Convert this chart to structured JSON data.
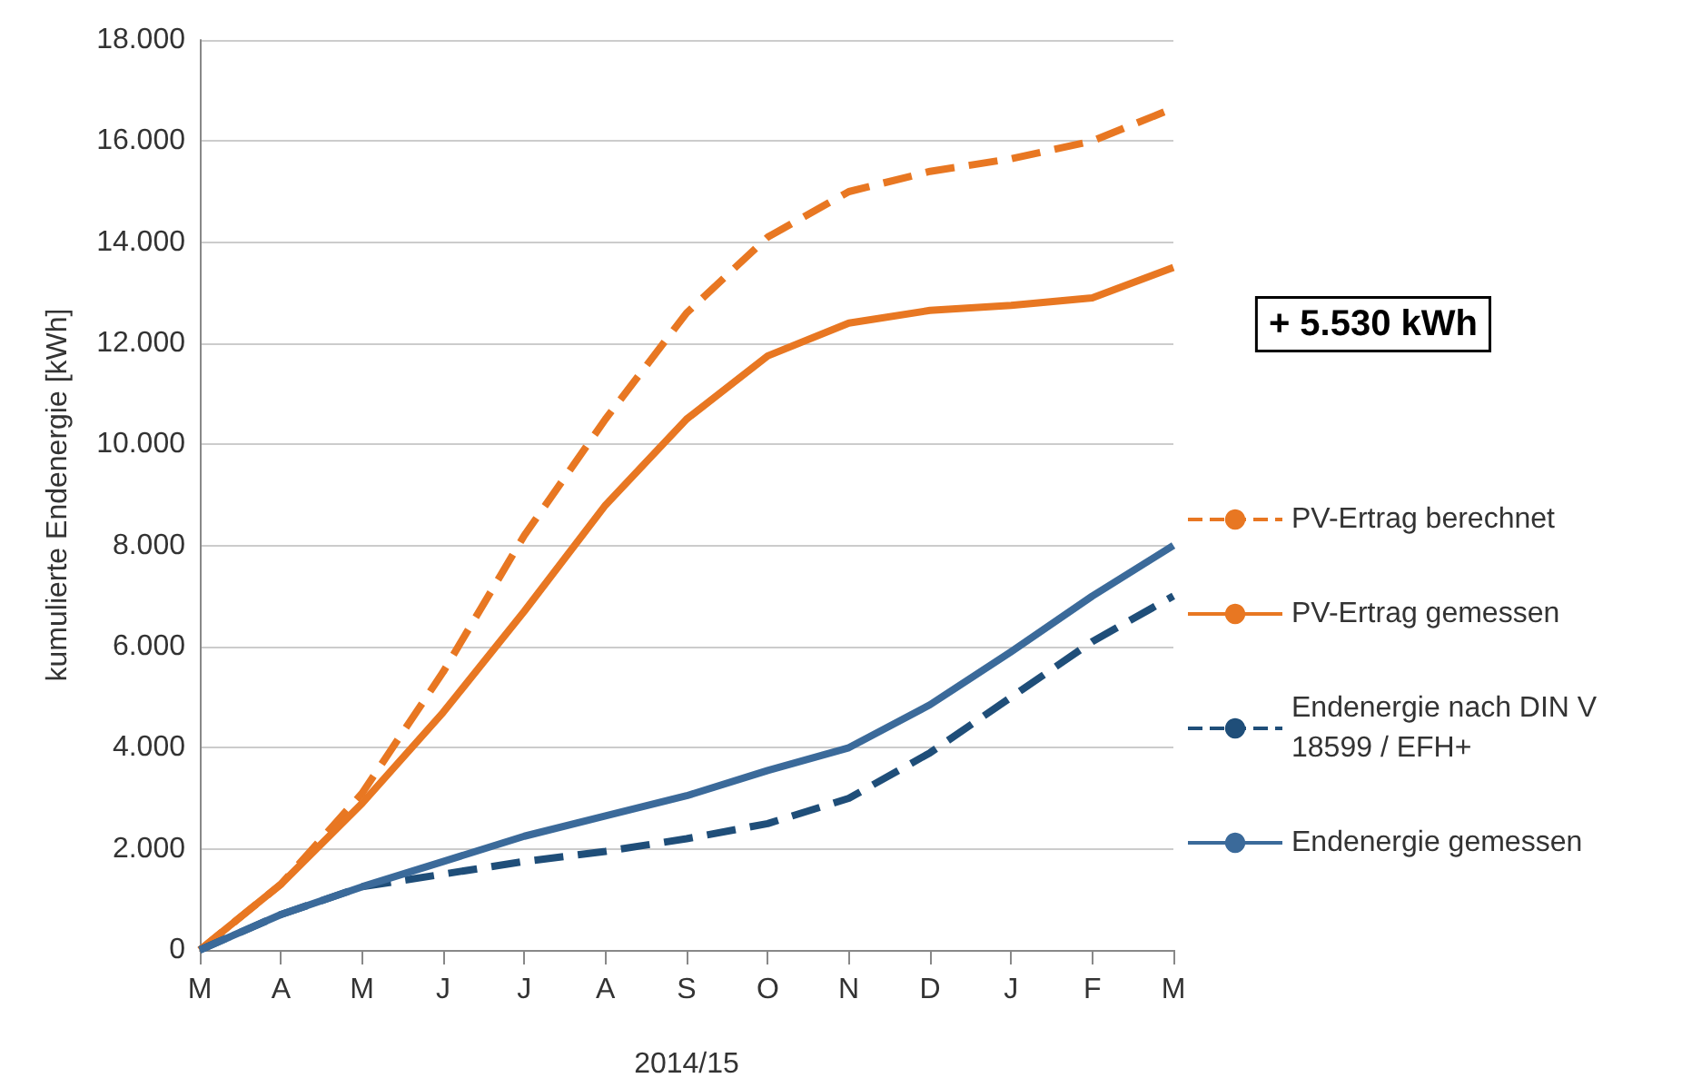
{
  "chart_data": {
    "type": "line",
    "ylabel": "kumulierte Endenergie [kWh]",
    "xlabel": "2014/15",
    "categories": [
      "M",
      "A",
      "M",
      "J",
      "J",
      "A",
      "S",
      "O",
      "N",
      "D",
      "J",
      "F",
      "M"
    ],
    "series": [
      {
        "name": "PV-Ertrag berechnet",
        "color": "#e87722",
        "line_style": "dashed",
        "values": [
          0,
          1300,
          3100,
          5500,
          8200,
          10500,
          12600,
          14100,
          15000,
          15400,
          15650,
          16000,
          16650
        ]
      },
      {
        "name": "PV-Ertrag gemessen",
        "color": "#e87722",
        "line_style": "solid",
        "values": [
          0,
          1300,
          2900,
          4700,
          6700,
          8800,
          10500,
          11750,
          12400,
          12650,
          12750,
          12900,
          13500
        ]
      },
      {
        "name": "Endenergie nach DIN V 18599 / EFH+",
        "color": "#1f4e79",
        "line_style": "dashed",
        "values": [
          0,
          700,
          1250,
          1500,
          1750,
          1950,
          2200,
          2500,
          3000,
          3900,
          5000,
          6100,
          7000
        ]
      },
      {
        "name": "Endenergie gemessen",
        "color": "#3b6a9a",
        "line_style": "solid",
        "values": [
          0,
          700,
          1250,
          1750,
          2250,
          2650,
          3050,
          3550,
          4000,
          4850,
          5900,
          7000,
          8000
        ]
      }
    ],
    "ylim": [
      0,
      18000
    ],
    "yticks": [
      0,
      {
        "value": 2000,
        "label": "2.000"
      },
      {
        "value": 4000,
        "label": "4.000"
      },
      {
        "value": 6000,
        "label": "6.000"
      },
      {
        "value": 8000,
        "label": "8.000"
      },
      {
        "value": 10000,
        "label": "10.000"
      },
      {
        "value": 12000,
        "label": "12.000"
      },
      {
        "value": 14000,
        "label": "14.000"
      },
      {
        "value": 16000,
        "label": "16.000"
      },
      {
        "value": 18000,
        "label": "18.000"
      }
    ],
    "grid": "y",
    "legend": "right",
    "marker": "none",
    "annotations": [
      "+ 5.530 kWh"
    ]
  }
}
